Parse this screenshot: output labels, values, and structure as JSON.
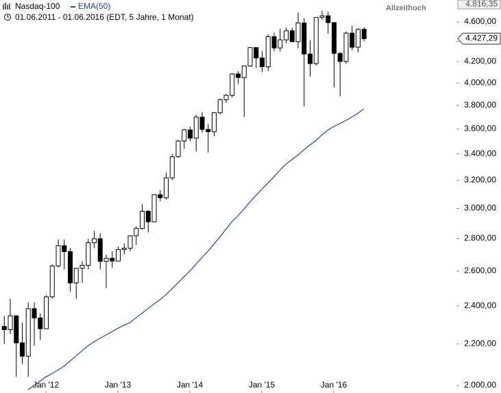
{
  "chart_data": {
    "type": "candlestick",
    "title": "Nasdaq-100",
    "subtitle": "01.06.2011 - 01.06.2016 (EDT, 5 Jahre, 1 Monat)",
    "annotations": [
      {
        "text": "Allzeithoch",
        "value": 4816.35,
        "label": "4.816,35"
      },
      {
        "value": 4427.29,
        "label": "4.427,29"
      }
    ],
    "categories": [
      null,
      null,
      null,
      null,
      null,
      null,
      null,
      "Jan '12",
      null,
      null,
      null,
      null,
      null,
      null,
      null,
      null,
      null,
      null,
      null,
      "Jan '13",
      null,
      null,
      null,
      null,
      null,
      null,
      null,
      null,
      null,
      null,
      null,
      "Jan '14",
      null,
      null,
      null,
      null,
      null,
      null,
      null,
      null,
      null,
      null,
      null,
      "Jan '15",
      null,
      null,
      null,
      null,
      null,
      null,
      null,
      null,
      null,
      null,
      null,
      "Jan '16",
      null,
      null,
      null,
      null,
      null
    ],
    "log_scale": true,
    "grid": false,
    "up_color": "#ffffff",
    "down_color": "#000000",
    "ylim": [
      1966,
      4837
    ],
    "yticks": [
      {
        "value": 2000,
        "label": "2.000,00"
      },
      {
        "value": 2200,
        "label": "2.200,00"
      },
      {
        "value": 2400,
        "label": "2.400,00"
      },
      {
        "value": 2600,
        "label": "2.600,00"
      },
      {
        "value": 2800,
        "label": "2.800,00"
      },
      {
        "value": 3000,
        "label": "3.000,00"
      },
      {
        "value": 3200,
        "label": "3.200,00"
      },
      {
        "value": 3400,
        "label": "3.400,00"
      },
      {
        "value": 3600,
        "label": "3.600,00"
      },
      {
        "value": 3800,
        "label": "3.800,00"
      },
      {
        "value": 4000,
        "label": "4.000,00"
      },
      {
        "value": 4200,
        "label": "4.200,00"
      },
      {
        "value": 4400,
        "label": "4.400,00"
      },
      {
        "value": 4600,
        "label": "4.600,00"
      }
    ],
    "series": [
      {
        "name": "Nasdaq-100",
        "color": "#000000",
        "open": [
          2290,
          2273,
          2346,
          2205,
          2139,
          2385,
          2335,
          2278,
          2450,
          2630,
          2755,
          2718,
          2530,
          2616,
          2634,
          2774,
          2799,
          2658,
          2677,
          2660,
          2731,
          2739,
          2818,
          2866,
          2981,
          2910,
          3097,
          3075,
          3218,
          3378,
          3502,
          3592,
          3525,
          3699,
          3596,
          3577,
          3736,
          3849,
          3888,
          4083,
          4050,
          4158,
          4338,
          4236,
          4151,
          4448,
          4334,
          4415,
          4508,
          4397,
          4589,
          4274,
          4181,
          4648,
          4665,
          4593,
          4280,
          4202,
          4484,
          4341,
          4523
        ],
        "high": [
          2345,
          2440,
          2350,
          2310,
          2420,
          2420,
          2360,
          2460,
          2640,
          2795,
          2795,
          2740,
          2620,
          2660,
          2800,
          2850,
          2835,
          2700,
          2720,
          2750,
          2770,
          2820,
          2880,
          3030,
          2990,
          3100,
          3130,
          3255,
          3400,
          3510,
          3600,
          3620,
          3720,
          3740,
          3640,
          3740,
          3860,
          3900,
          4090,
          4110,
          4165,
          4340,
          4340,
          4300,
          4470,
          4490,
          4530,
          4540,
          4540,
          4700,
          4640,
          4410,
          4650,
          4720,
          4710,
          4590,
          4290,
          4500,
          4560,
          4530,
          4545
        ],
        "low": [
          2200,
          2250,
          2040,
          2100,
          2040,
          2190,
          2220,
          2280,
          2440,
          2620,
          2610,
          2480,
          2440,
          2530,
          2610,
          2740,
          2610,
          2500,
          2620,
          2660,
          2700,
          2720,
          2760,
          2860,
          2840,
          2920,
          3050,
          3060,
          3200,
          3370,
          3440,
          3500,
          3420,
          3570,
          3410,
          3540,
          3720,
          3820,
          3870,
          3990,
          3700,
          4150,
          4140,
          4100,
          4110,
          4300,
          4300,
          4380,
          4390,
          4330,
          3790,
          4060,
          4160,
          4620,
          4480,
          3960,
          3880,
          4180,
          4310,
          4290,
          4400
        ],
        "close": [
          2273,
          2346,
          2205,
          2139,
          2385,
          2335,
          2278,
          2450,
          2630,
          2755,
          2718,
          2530,
          2616,
          2634,
          2774,
          2799,
          2658,
          2677,
          2660,
          2731,
          2739,
          2818,
          2866,
          2981,
          2910,
          3097,
          3075,
          3218,
          3378,
          3502,
          3592,
          3525,
          3699,
          3596,
          3577,
          3736,
          3849,
          3888,
          4083,
          4050,
          4158,
          4338,
          4236,
          4151,
          4448,
          4334,
          4415,
          4508,
          4397,
          4589,
          4274,
          4181,
          4648,
          4665,
          4593,
          4280,
          4202,
          4484,
          4341,
          4523,
          4427.29
        ]
      },
      {
        "name": "EMA(50)",
        "type": "line",
        "color": "#1f3fd0",
        "values": [
          null,
          null,
          null,
          null,
          1980,
          2000,
          2020,
          2040,
          2055,
          2072,
          2090,
          2115,
          2140,
          2165,
          2190,
          2210,
          2228,
          2245,
          2262,
          2280,
          2296,
          2310,
          2335,
          2360,
          2385,
          2410,
          2435,
          2462,
          2495,
          2530,
          2565,
          2600,
          2640,
          2680,
          2720,
          2765,
          2810,
          2860,
          2910,
          2950,
          2995,
          3045,
          3090,
          3135,
          3180,
          3225,
          3275,
          3320,
          3355,
          3390,
          3430,
          3470,
          3505,
          3550,
          3590,
          3620,
          3645,
          3670,
          3700,
          3730,
          3770
        ]
      }
    ]
  }
}
